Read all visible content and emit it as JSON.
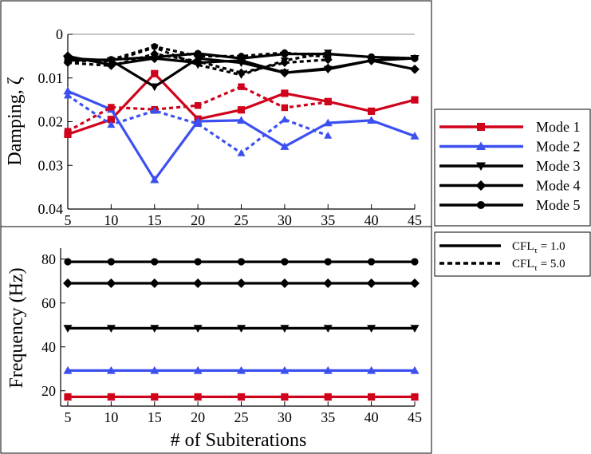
{
  "chart_data": [
    {
      "type": "line",
      "ylabel": "Damping, ζ",
      "x_ticks": [
        5,
        10,
        15,
        20,
        25,
        30,
        35,
        40,
        45
      ],
      "y_ticks": [
        "0",
        "0.01",
        "0.02",
        "0.03",
        "0.04"
      ],
      "xlim": [
        5,
        45
      ],
      "ylim": [
        0,
        0.04
      ],
      "y_inverted": true,
      "series": [
        {
          "name": "Mode 1",
          "marker": "square",
          "cfl": "1.0",
          "color": "#d0021b",
          "x": [
            5,
            10,
            15,
            20,
            25,
            30,
            35,
            40,
            45
          ],
          "values": [
            0.0229,
            0.0195,
            0.009,
            0.0194,
            0.0173,
            0.0135,
            0.0154,
            0.0176,
            0.015
          ]
        },
        {
          "name": "Mode 2",
          "marker": "triangle-up",
          "cfl": "1.0",
          "color": "#3c50f0",
          "x": [
            5,
            10,
            15,
            20,
            25,
            30,
            35,
            40,
            45
          ],
          "values": [
            0.013,
            0.0172,
            0.0333,
            0.0199,
            0.0197,
            0.0257,
            0.0203,
            0.0197,
            0.0233
          ]
        },
        {
          "name": "Mode 3",
          "marker": "triangle-down",
          "cfl": "1.0",
          "color": "#000000",
          "x": [
            5,
            10,
            15,
            20,
            25,
            30,
            35,
            40,
            45
          ],
          "values": [
            0.0055,
            0.006,
            0.012,
            0.0055,
            0.0065,
            0.0088,
            0.008,
            0.006,
            0.0055
          ]
        },
        {
          "name": "Mode 4",
          "marker": "diamond",
          "cfl": "1.0",
          "color": "#000000",
          "x": [
            5,
            10,
            15,
            20,
            25,
            30,
            35,
            40,
            45
          ],
          "values": [
            0.005,
            0.007,
            0.0055,
            0.0065,
            0.006,
            0.0088,
            0.0078,
            0.006,
            0.008
          ]
        },
        {
          "name": "Mode 5",
          "marker": "circle",
          "cfl": "1.0",
          "color": "#000000",
          "x": [
            5,
            10,
            15,
            20,
            25,
            30,
            35,
            40,
            45
          ],
          "values": [
            0.006,
            0.0058,
            0.0052,
            0.0044,
            0.0055,
            0.0045,
            0.0045,
            0.0052,
            0.0055
          ]
        },
        {
          "name": "Mode 1",
          "marker": "square",
          "cfl": "5.0",
          "color": "#d0021b",
          "x": [
            5,
            10,
            15,
            20,
            25,
            30,
            35
          ],
          "values": [
            0.0222,
            0.0167,
            0.0172,
            0.0163,
            0.012,
            0.0168,
            0.0155
          ]
        },
        {
          "name": "Mode 2",
          "marker": "triangle-up",
          "cfl": "5.0",
          "color": "#3c50f0",
          "x": [
            5,
            10,
            15,
            20,
            25,
            30,
            35
          ],
          "values": [
            0.014,
            0.0207,
            0.0175,
            0.0205,
            0.0272,
            0.0195,
            0.0232
          ]
        },
        {
          "name": "Mode 3",
          "marker": "triangle-down",
          "cfl": "5.0",
          "color": "#000000",
          "x": [
            5,
            10,
            15,
            20,
            25,
            30,
            35
          ],
          "values": [
            0.006,
            0.0062,
            0.003,
            0.007,
            0.0093,
            0.006,
            0.0042
          ]
        },
        {
          "name": "Mode 4",
          "marker": "diamond",
          "cfl": "5.0",
          "color": "#000000",
          "x": [
            5,
            10,
            15,
            20,
            25,
            30,
            35
          ],
          "values": [
            0.0065,
            0.0072,
            0.0045,
            0.0062,
            0.0088,
            0.0065,
            0.0058
          ]
        },
        {
          "name": "Mode 5",
          "marker": "circle",
          "cfl": "5.0",
          "color": "#000000",
          "x": [
            5,
            10,
            15,
            20,
            25,
            30,
            35
          ],
          "values": [
            0.0062,
            0.0058,
            0.0028,
            0.005,
            0.005,
            0.0042,
            0.0052
          ]
        }
      ]
    },
    {
      "type": "line",
      "xlabel": "# of Subiterations",
      "ylabel": "Frequency (Hz)",
      "x_ticks": [
        5,
        10,
        15,
        20,
        25,
        30,
        35,
        40,
        45
      ],
      "y_ticks": [
        "20",
        "40",
        "60",
        "80"
      ],
      "xlim": [
        5,
        45
      ],
      "ylim": [
        13,
        85
      ],
      "series": [
        {
          "name": "Mode 1",
          "marker": "square",
          "color": "#d0021b",
          "x": [
            5,
            10,
            15,
            20,
            25,
            30,
            35,
            40,
            45
          ],
          "values": [
            17.2,
            17.2,
            17.2,
            17.2,
            17.2,
            17.2,
            17.2,
            17.2,
            17.2
          ]
        },
        {
          "name": "Mode 2",
          "marker": "triangle-up",
          "color": "#3c50f0",
          "x": [
            5,
            10,
            15,
            20,
            25,
            30,
            35,
            40,
            45
          ],
          "values": [
            29.2,
            29.2,
            29.2,
            29.2,
            29.2,
            29.2,
            29.2,
            29.2,
            29.2
          ]
        },
        {
          "name": "Mode 3",
          "marker": "triangle-down",
          "color": "#000000",
          "x": [
            5,
            10,
            15,
            20,
            25,
            30,
            35,
            40,
            45
          ],
          "values": [
            48.5,
            48.5,
            48.5,
            48.5,
            48.5,
            48.5,
            48.5,
            48.5,
            48.5
          ]
        },
        {
          "name": "Mode 4",
          "marker": "diamond",
          "color": "#000000",
          "x": [
            5,
            10,
            15,
            20,
            25,
            30,
            35,
            40,
            45
          ],
          "values": [
            69.0,
            69.0,
            69.0,
            69.0,
            69.0,
            69.0,
            69.0,
            69.0,
            69.0
          ]
        },
        {
          "name": "Mode 5",
          "marker": "circle",
          "color": "#000000",
          "x": [
            5,
            10,
            15,
            20,
            25,
            30,
            35,
            40,
            45
          ],
          "values": [
            78.8,
            78.8,
            78.8,
            78.8,
            78.8,
            78.8,
            78.8,
            78.8,
            78.8
          ]
        }
      ]
    }
  ],
  "legend_modes": [
    {
      "label": "Mode 1",
      "marker": "square",
      "color": "#d0021b"
    },
    {
      "label": "Mode 2",
      "marker": "triangle-up",
      "color": "#3c50f0"
    },
    {
      "label": "Mode 3",
      "marker": "triangle-down",
      "color": "#000000"
    },
    {
      "label": "Mode 4",
      "marker": "diamond",
      "color": "#000000"
    },
    {
      "label": "Mode 5",
      "marker": "circle",
      "color": "#000000"
    }
  ],
  "legend_cfl": [
    {
      "label_main": "CFL",
      "label_sub": "τ",
      "label_value": " = 1.0",
      "style": "solid"
    },
    {
      "label_main": "CFL",
      "label_sub": "τ",
      "label_value": " = 5.0",
      "style": "dashed"
    }
  ]
}
